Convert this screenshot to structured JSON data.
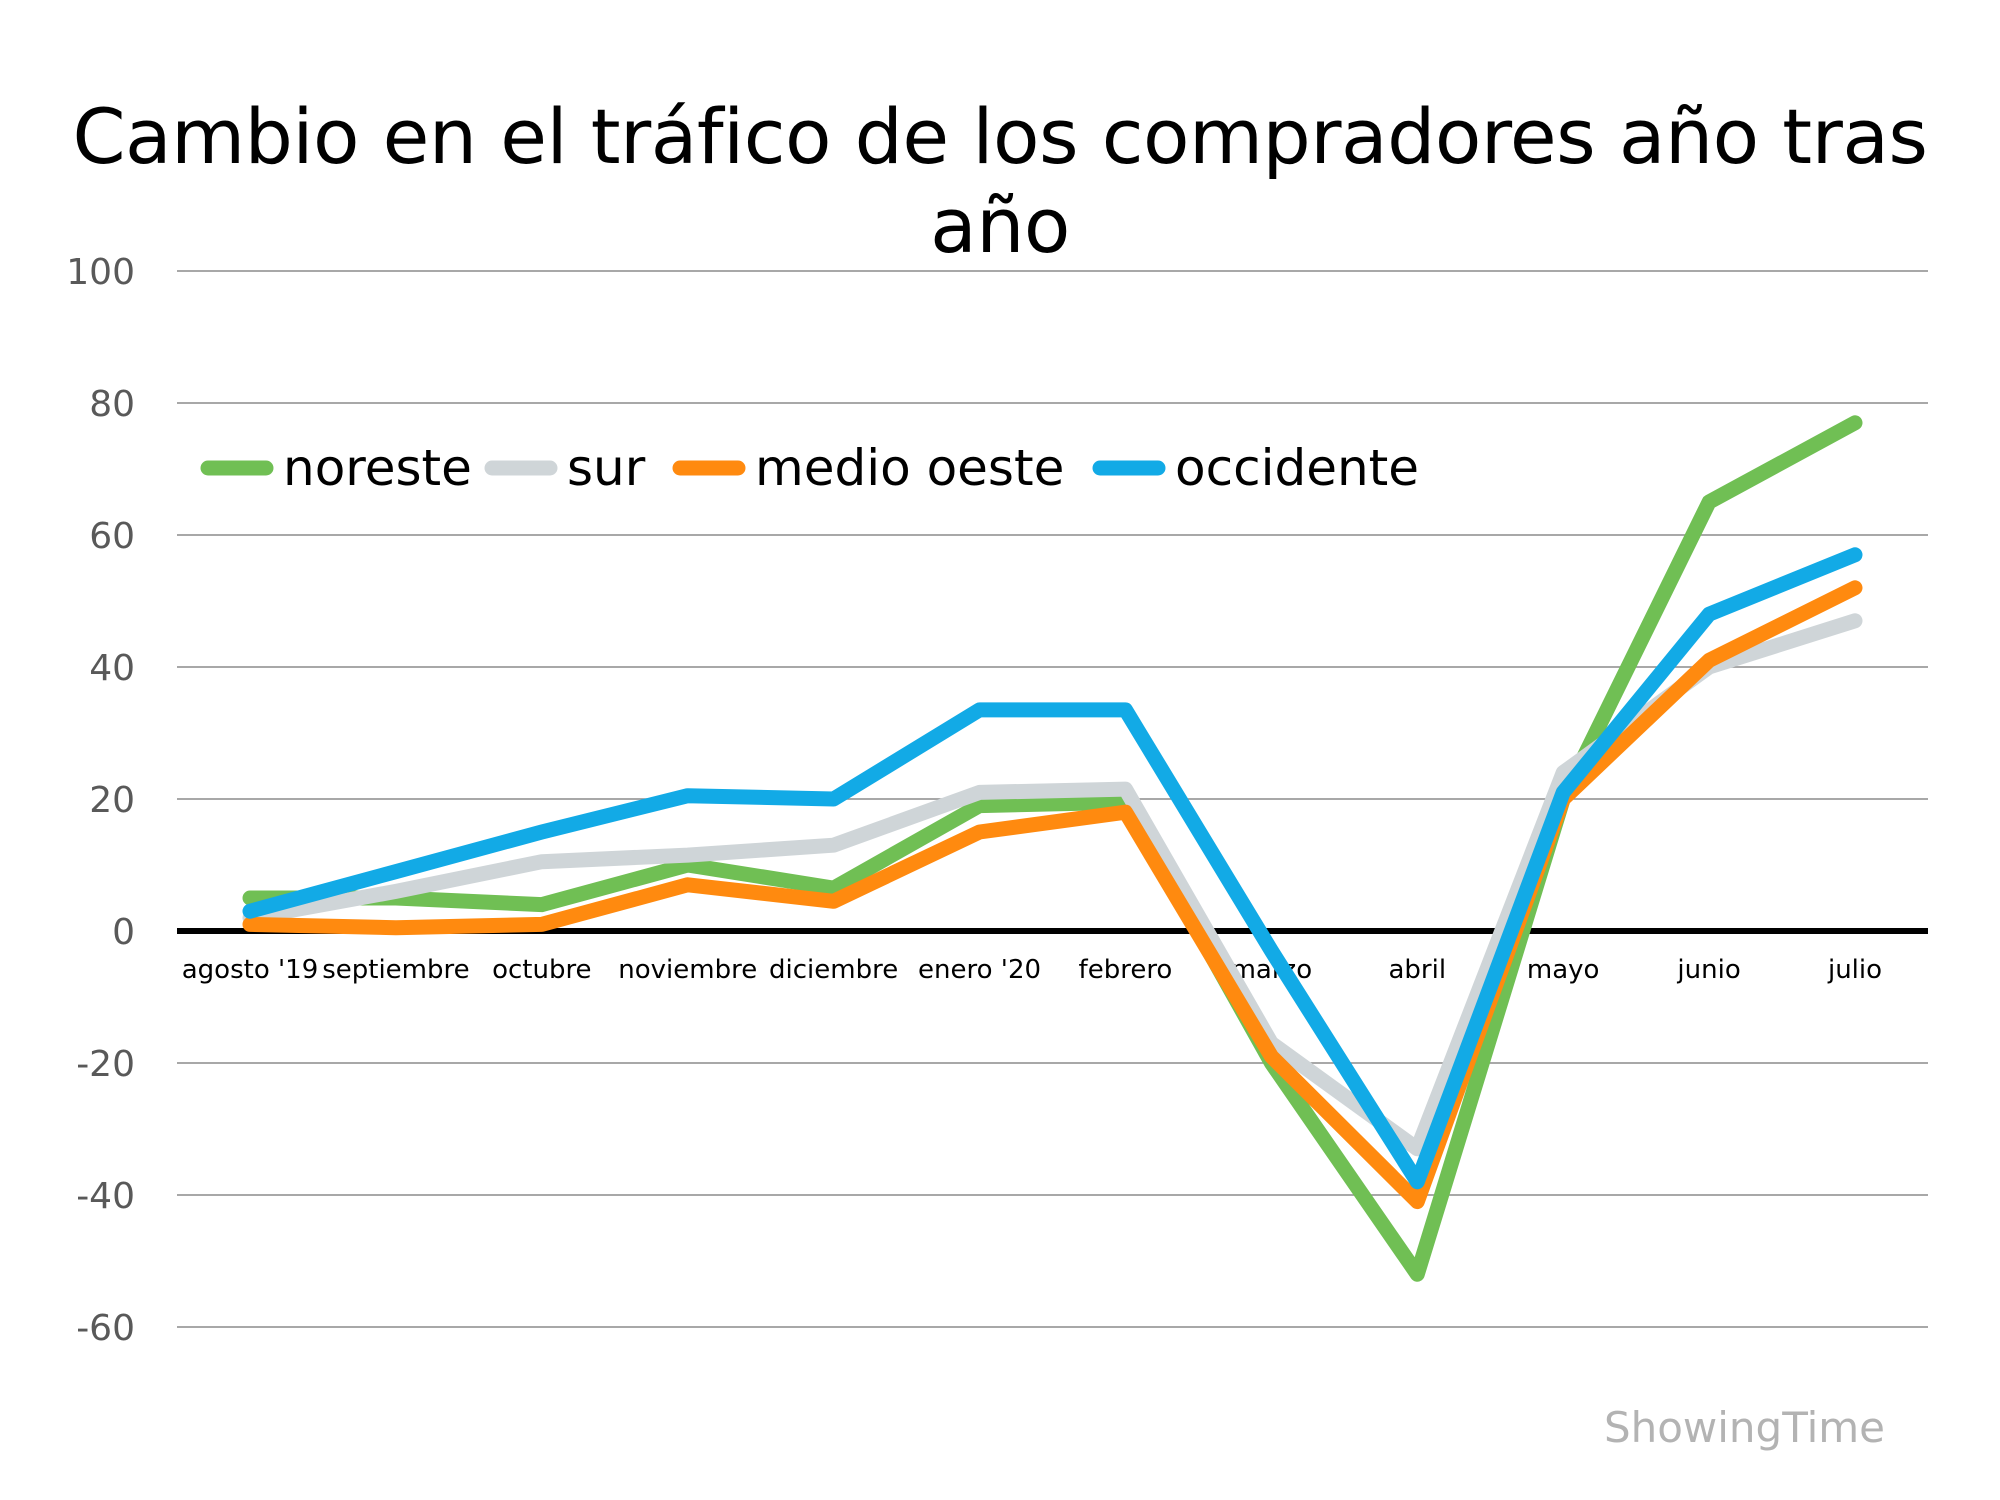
{
  "chart_data": {
    "type": "line",
    "title": "Cambio en el tráfico de los compradores año tras año",
    "categories": [
      "agosto '19",
      "septiembre",
      "octubre",
      "noviembre",
      "diciembre",
      "enero '20",
      "febrero",
      "marzo",
      "abril",
      "mayo",
      "junio",
      "julio"
    ],
    "series": [
      {
        "name": "noreste",
        "color": "#70bf54",
        "values": [
          5,
          5,
          4,
          10,
          6.5,
          19,
          19.5,
          -20,
          -52,
          20,
          65,
          77
        ]
      },
      {
        "name": "sur",
        "color": "#cfd5d8",
        "values": [
          2,
          6,
          10.5,
          11.5,
          13,
          21,
          21.5,
          -17,
          -33,
          24,
          40,
          47
        ]
      },
      {
        "name": "medio oeste",
        "color": "#ff8a0f",
        "values": [
          1,
          0.5,
          1,
          7,
          4.5,
          15,
          18,
          -19,
          -41,
          20,
          41,
          52
        ]
      },
      {
        "name": "occidente",
        "color": "#12aae6",
        "values": [
          3,
          9,
          15,
          20.5,
          20,
          33.5,
          33.5,
          -3,
          -38,
          21,
          48,
          57
        ]
      }
    ],
    "yticks": [
      100,
      80,
      60,
      40,
      20,
      0,
      -20,
      -40,
      -60
    ],
    "ylim": [
      -60,
      100
    ],
    "xlabel": "",
    "ylabel": "",
    "legend": "top-left",
    "grid": true
  },
  "watermark": "ShowingTime"
}
